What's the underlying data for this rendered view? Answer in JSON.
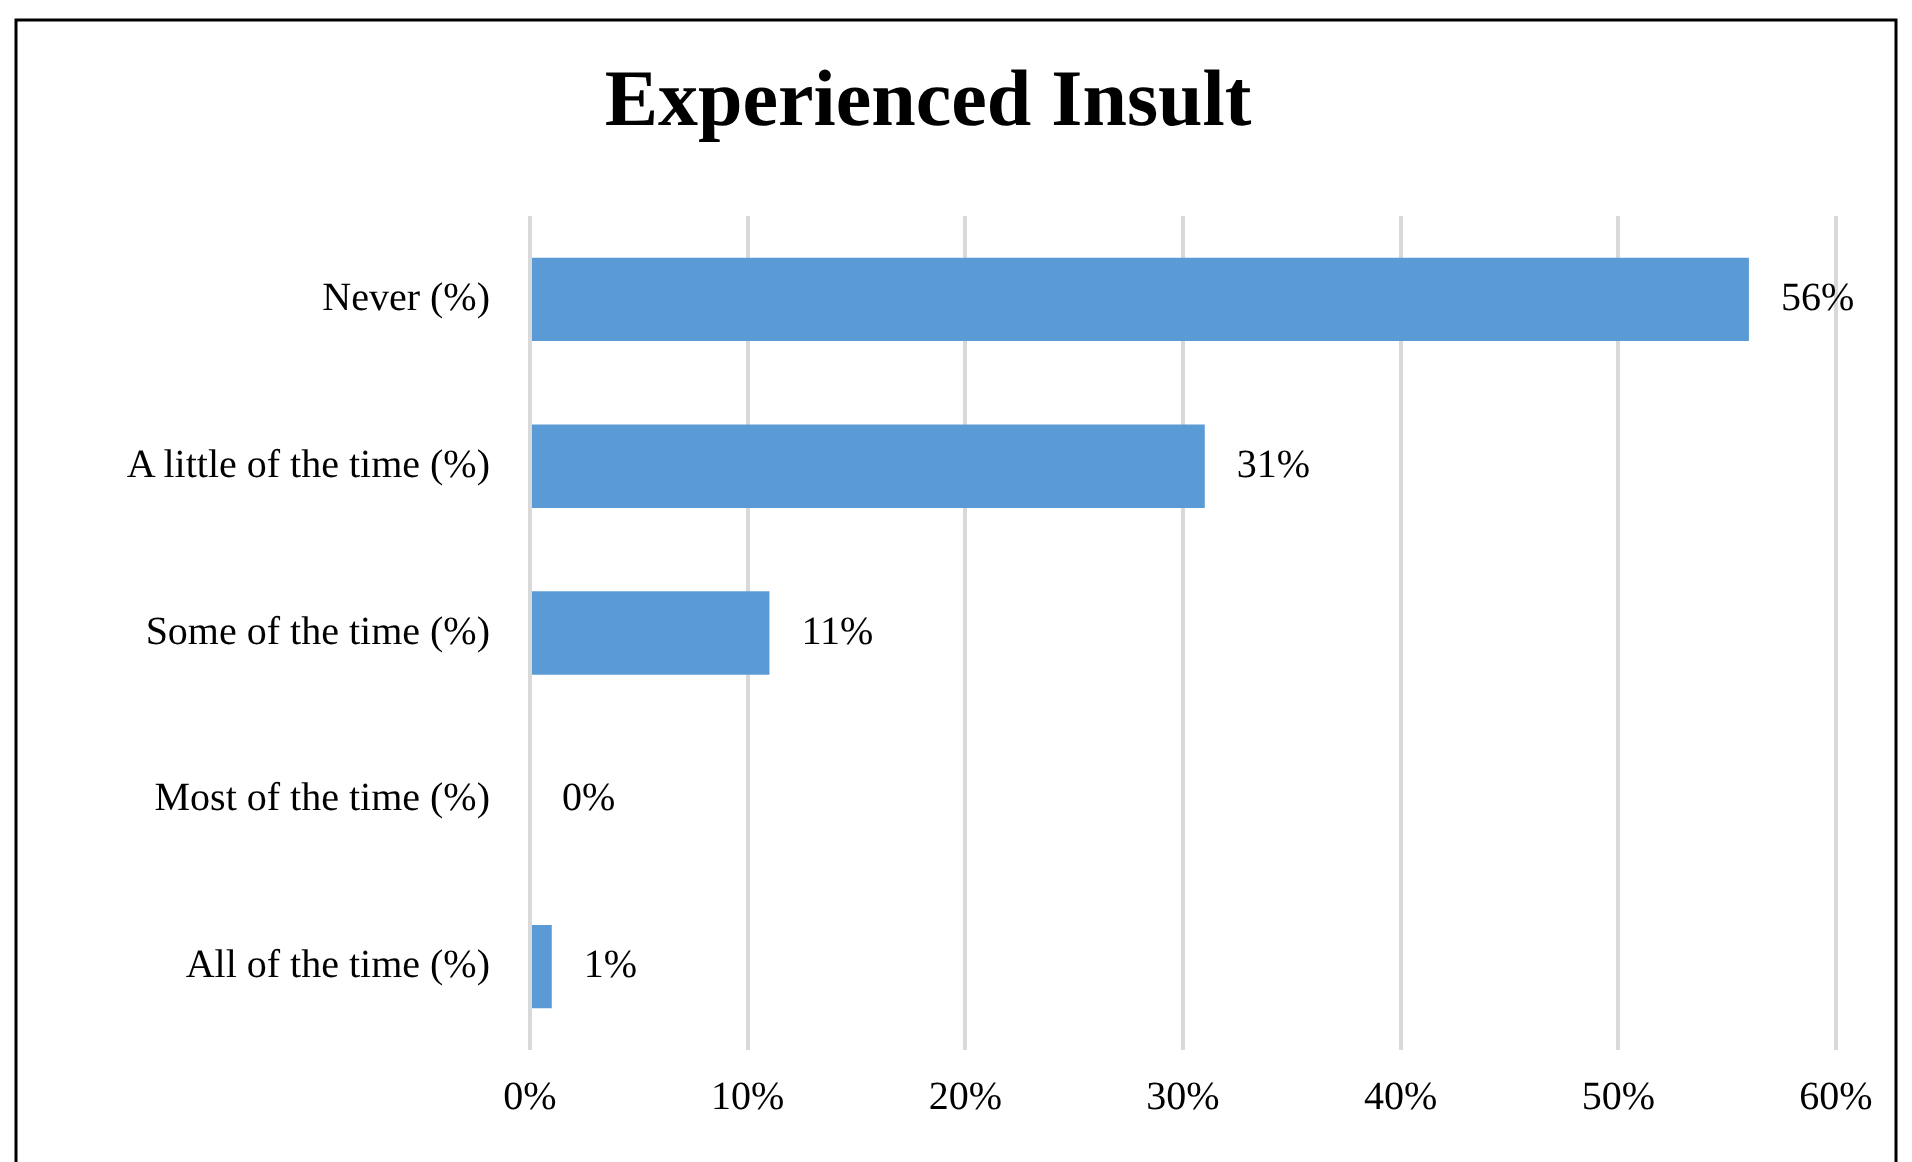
{
  "chart_data": {
    "type": "bar",
    "orientation": "horizontal",
    "title": "Experienced Insult",
    "categories": [
      "Never (%)",
      "A little of the time (%)",
      "Some of the time (%)",
      "Most of the time (%)",
      "All of the time (%)"
    ],
    "values": [
      56,
      31,
      11,
      0,
      1
    ],
    "value_labels": [
      "56%",
      "31%",
      "11%",
      "0%",
      "1%"
    ],
    "color": "#5b9bd5",
    "xlim": [
      0,
      60
    ],
    "xticks": [
      {
        "value": 0,
        "label": "0%"
      },
      {
        "value": 10,
        "label": "10%"
      },
      {
        "value": 20,
        "label": "20%"
      },
      {
        "value": 30,
        "label": "30%"
      },
      {
        "value": 40,
        "label": "40%"
      },
      {
        "value": 50,
        "label": "50%"
      },
      {
        "value": 60,
        "label": "60%"
      }
    ],
    "grid": "x",
    "legend": false
  }
}
